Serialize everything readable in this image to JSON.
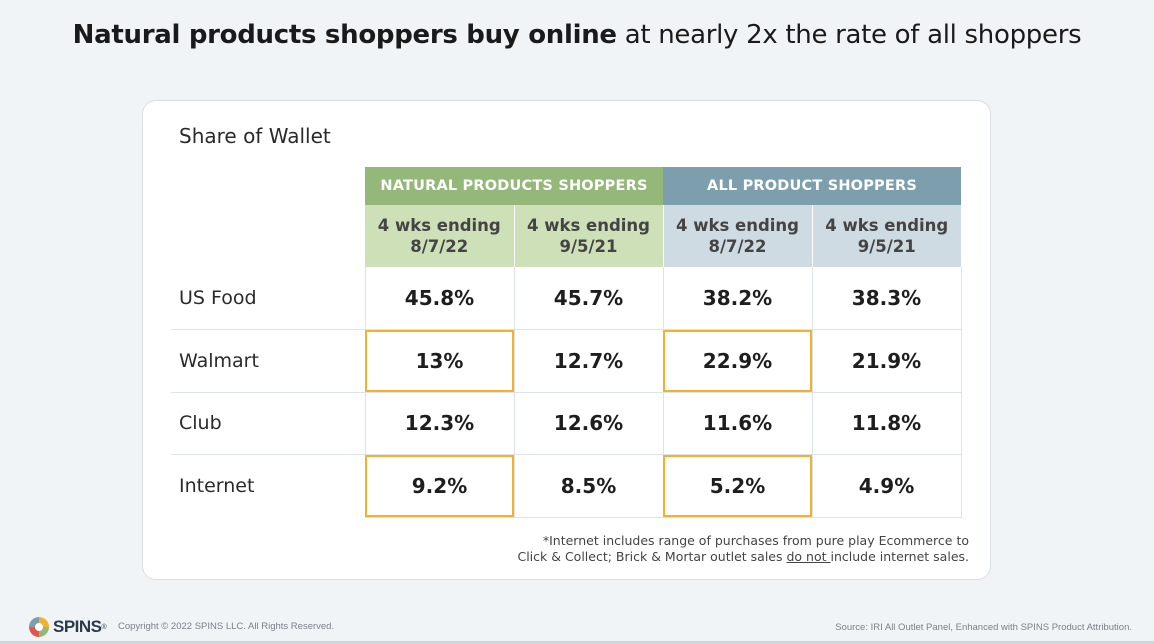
{
  "headline": {
    "bold": "Natural products shoppers buy online",
    "regular": " at nearly 2x the rate of all shoppers"
  },
  "card": {
    "title": "Share of Wallet",
    "groups": [
      {
        "label": "NATURAL PRODUCTS SHOPPERS",
        "color": "#94b879"
      },
      {
        "label": "ALL PRODUCT SHOPPERS",
        "color": "#7d9fad"
      }
    ],
    "periods": [
      {
        "line1": "4 wks ending",
        "line2": "8/7/22"
      },
      {
        "line1": "4 wks ending",
        "line2": "9/5/21"
      },
      {
        "line1": "4 wks ending",
        "line2": "8/7/22"
      },
      {
        "line1": "4 wks ending",
        "line2": "9/5/21"
      }
    ],
    "rows": [
      {
        "label": "US Food",
        "values": [
          "45.8%",
          "45.7%",
          "38.2%",
          "38.3%"
        ]
      },
      {
        "label": "Walmart",
        "values": [
          "13%",
          "12.7%",
          "22.9%",
          "21.9%"
        ]
      },
      {
        "label": "Club",
        "values": [
          "12.3%",
          "12.6%",
          "11.6%",
          "11.8%"
        ]
      },
      {
        "label": "Internet",
        "values": [
          "9.2%",
          "8.5%",
          "5.2%",
          "4.9%"
        ]
      }
    ],
    "highlight_color": "#f2b22e",
    "footnote": {
      "line1": "*Internet includes range of purchases from pure play Ecommerce to",
      "line2_pre": "Click & Collect; Brick & Mortar outlet sales ",
      "line2_underline": "do not ",
      "line2_post": "include internet sales."
    }
  },
  "footer": {
    "logo_icon": "spins-logo-icon",
    "logo_text": "SPINS",
    "logo_tm": "®",
    "copyright": "Copyright © 2022 SPINS LLC. All Rights Reserved.",
    "source": "Source: IRI All Outlet Panel, Enhanced with SPINS Product Attribution."
  }
}
